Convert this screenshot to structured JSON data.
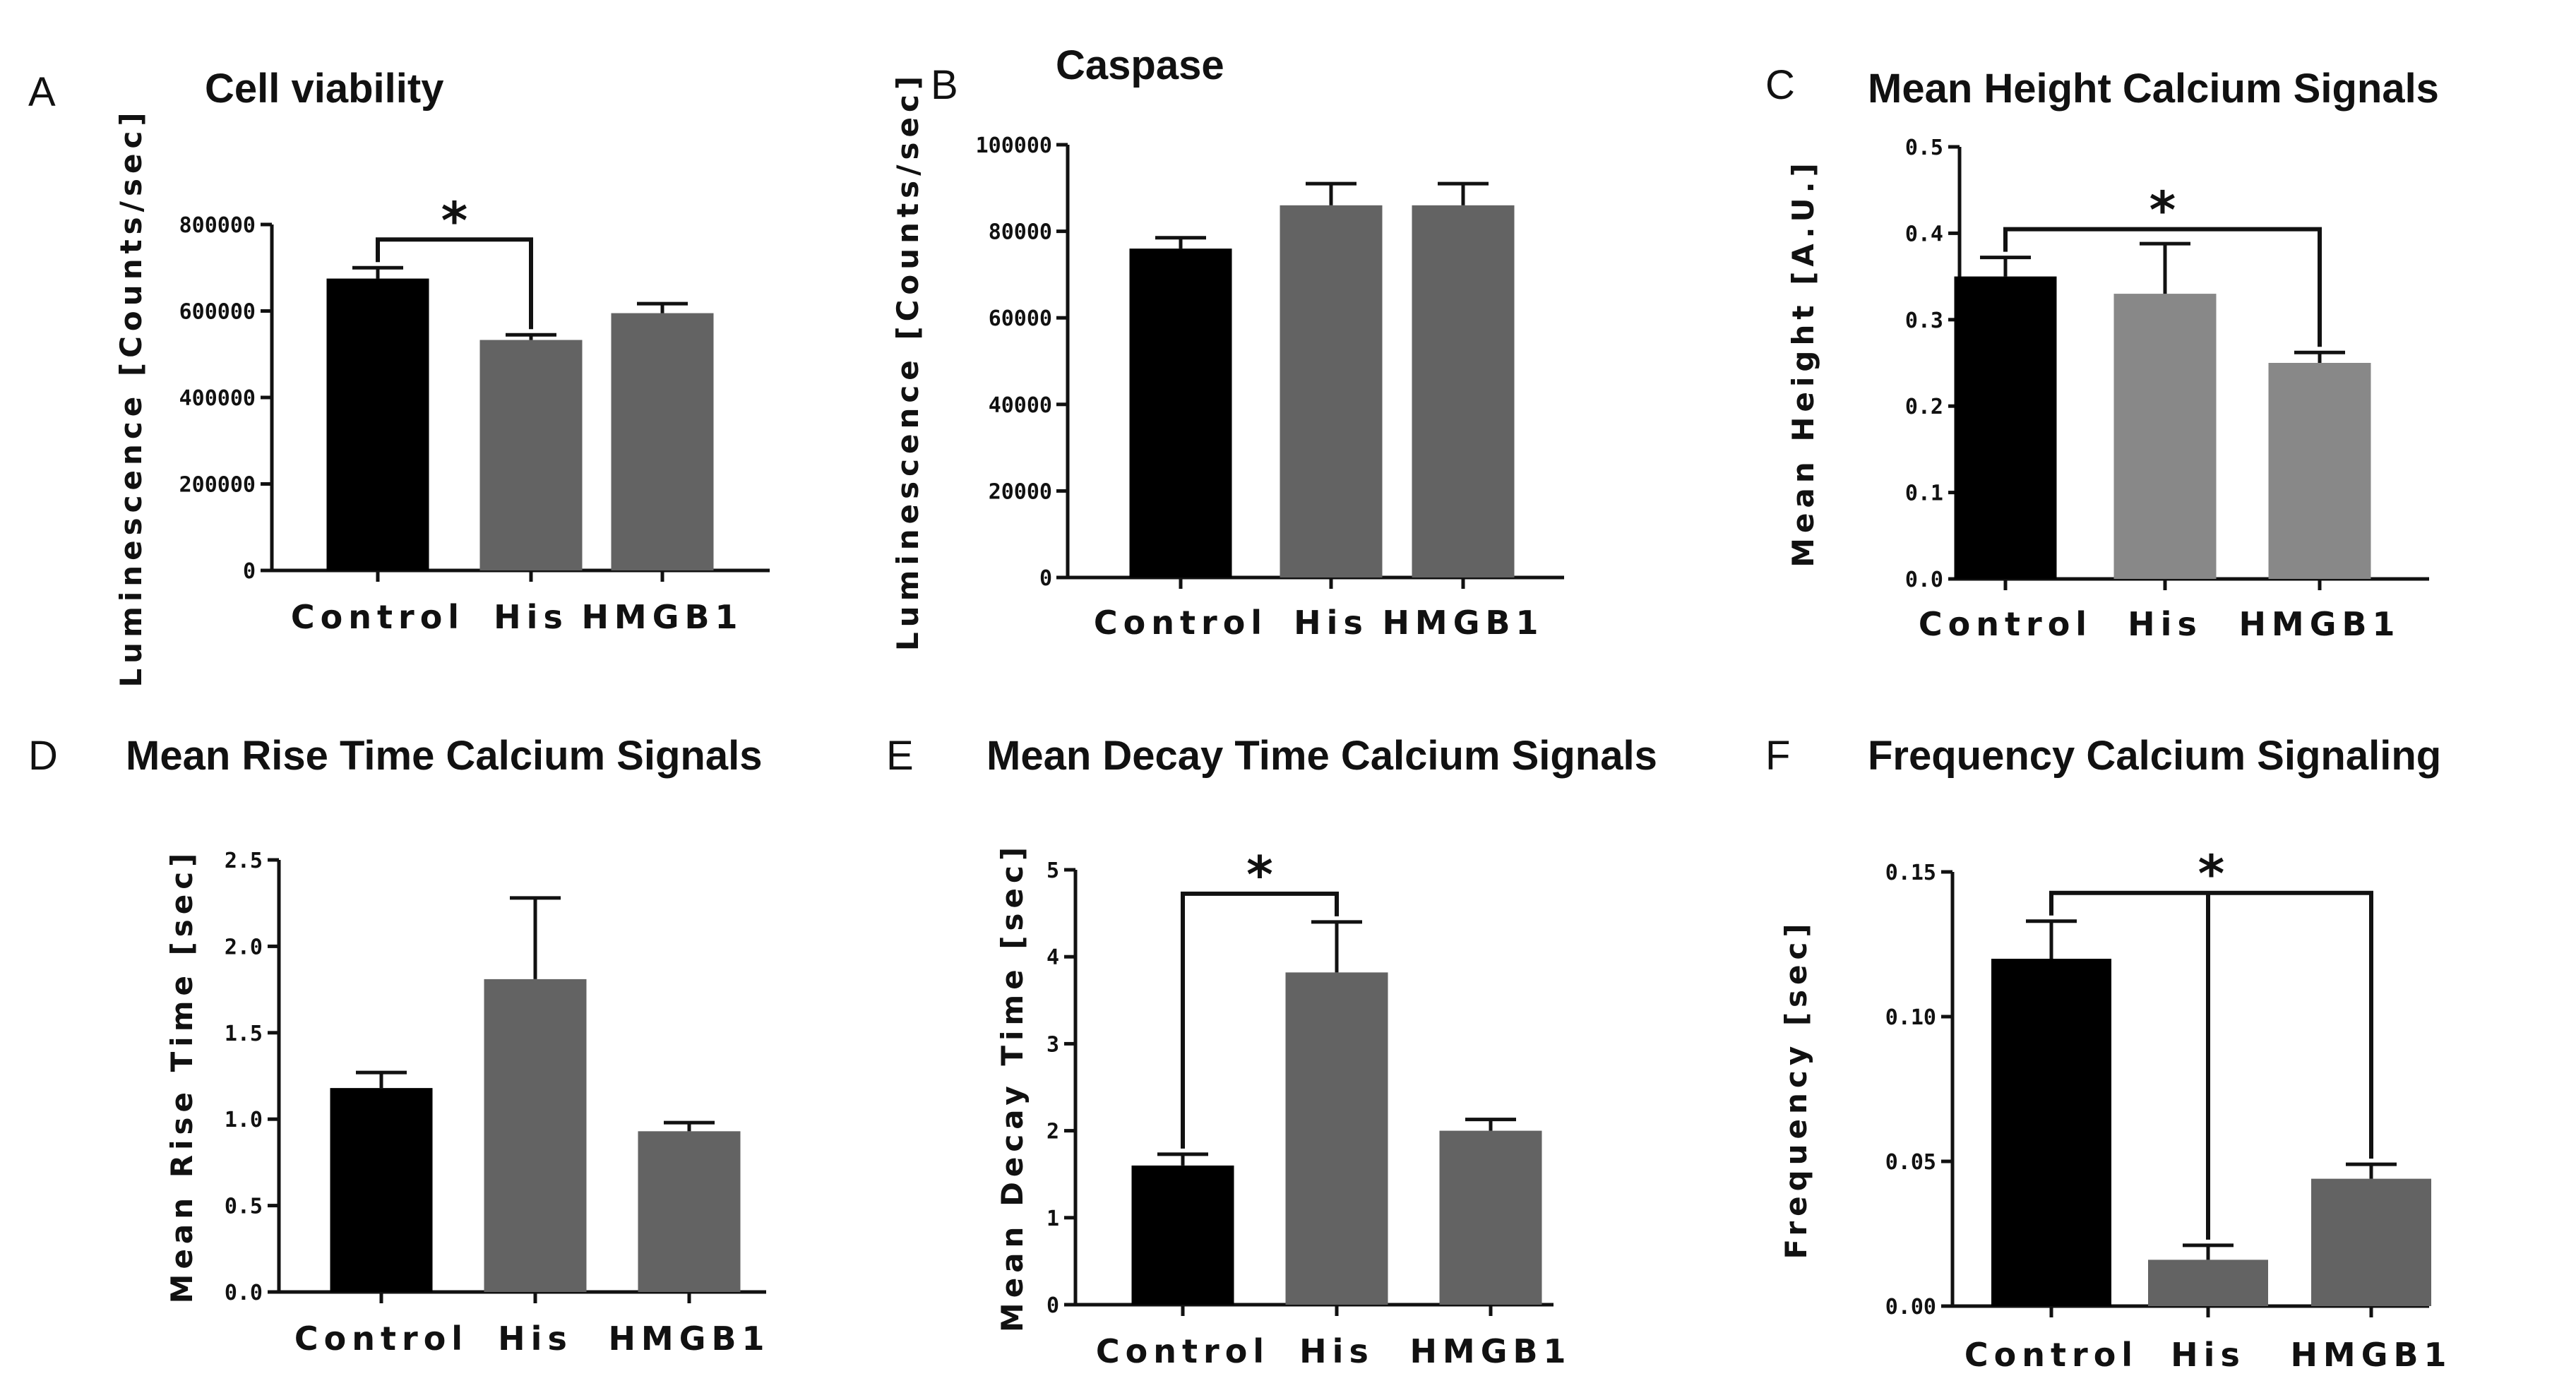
{
  "figure": {
    "chart_data": [
      {
        "panel": "A",
        "type": "bar",
        "title": "Cell viability",
        "ylabel": "Luminescence [Counts/sec]",
        "xlabel": "",
        "categories": [
          "Control",
          "His",
          "HMGB1"
        ],
        "values": [
          675000,
          533000,
          595000
        ],
        "errors": [
          25000,
          12000,
          22000
        ],
        "colors": [
          "#000000",
          "#636363",
          "#636363"
        ],
        "ylim": [
          0,
          800000
        ],
        "yticks": [
          0,
          200000,
          400000,
          600000,
          800000
        ],
        "ytick_labels": [
          "0",
          "200000",
          "400000",
          "600000",
          "800000"
        ],
        "significance": [
          {
            "from": 0,
            "to": 1,
            "label": "*"
          }
        ]
      },
      {
        "panel": "B",
        "type": "bar",
        "title": "Caspase",
        "ylabel": "Luminescence [Counts/sec]",
        "xlabel": "",
        "categories": [
          "Control",
          "His",
          "HMGB1"
        ],
        "values": [
          76000,
          86000,
          86000
        ],
        "errors": [
          2500,
          5000,
          5000
        ],
        "colors": [
          "#000000",
          "#636363",
          "#636363"
        ],
        "ylim": [
          0,
          100000
        ],
        "yticks": [
          0,
          20000,
          40000,
          60000,
          80000,
          100000
        ],
        "ytick_labels": [
          "0",
          "20000",
          "40000",
          "60000",
          "80000",
          "100000"
        ],
        "significance": []
      },
      {
        "panel": "C",
        "type": "bar",
        "title": "Mean Height Calcium Signals",
        "ylabel": "Mean Height [A.U.]",
        "xlabel": "",
        "categories": [
          "Control",
          "His",
          "HMGB1"
        ],
        "values": [
          0.35,
          0.33,
          0.25
        ],
        "errors": [
          0.022,
          0.058,
          0.012
        ],
        "colors": [
          "#000000",
          "#888888",
          "#888888"
        ],
        "ylim": [
          0,
          0.5
        ],
        "yticks": [
          0,
          0.1,
          0.2,
          0.3,
          0.4,
          0.5
        ],
        "ytick_labels": [
          "0.0",
          "0.1",
          "0.2",
          "0.3",
          "0.4",
          "0.5"
        ],
        "significance": [
          {
            "from": 0,
            "to": 2,
            "label": "*"
          }
        ]
      },
      {
        "panel": "D",
        "type": "bar",
        "title": "Mean Rise Time Calcium Signals",
        "ylabel": "Mean Rise Time [sec]",
        "xlabel": "",
        "categories": [
          "Control",
          "His",
          "HMGB1"
        ],
        "values": [
          1.18,
          1.81,
          0.93
        ],
        "errors": [
          0.09,
          0.47,
          0.05
        ],
        "colors": [
          "#000000",
          "#636363",
          "#636363"
        ],
        "ylim": [
          0,
          2.5
        ],
        "yticks": [
          0,
          0.5,
          1.0,
          1.5,
          2.0,
          2.5
        ],
        "ytick_labels": [
          "0.0",
          "0.5",
          "1.0",
          "1.5",
          "2.0",
          "2.5"
        ],
        "significance": []
      },
      {
        "panel": "E",
        "type": "bar",
        "title": "Mean Decay Time Calcium Signals",
        "ylabel": "Mean Decay Time [sec]",
        "xlabel": "",
        "categories": [
          "Control",
          "His",
          "HMGB1"
        ],
        "values": [
          1.6,
          3.82,
          2.0
        ],
        "errors": [
          0.13,
          0.58,
          0.13
        ],
        "colors": [
          "#000000",
          "#636363",
          "#636363"
        ],
        "ylim": [
          0,
          5
        ],
        "yticks": [
          0,
          1,
          2,
          3,
          4,
          5
        ],
        "ytick_labels": [
          "0",
          "1",
          "2",
          "3",
          "4",
          "5"
        ],
        "significance": [
          {
            "from": 0,
            "to": 1,
            "label": "*"
          }
        ]
      },
      {
        "panel": "F",
        "type": "bar",
        "title": "Frequency Calcium Signaling",
        "ylabel": "Frequency [sec]",
        "xlabel": "",
        "categories": [
          "Control",
          "His",
          "HMGB1"
        ],
        "values": [
          0.12,
          0.016,
          0.044
        ],
        "errors": [
          0.013,
          0.005,
          0.005
        ],
        "colors": [
          "#000000",
          "#636363",
          "#636363"
        ],
        "ylim": [
          0,
          0.15
        ],
        "yticks": [
          0,
          0.05,
          0.1,
          0.15
        ],
        "ytick_labels": [
          "0.00",
          "0.05",
          "0.10",
          "0.15"
        ],
        "significance": [
          {
            "from": 0,
            "to": 2,
            "label": "*",
            "also": 1
          }
        ]
      }
    ]
  }
}
